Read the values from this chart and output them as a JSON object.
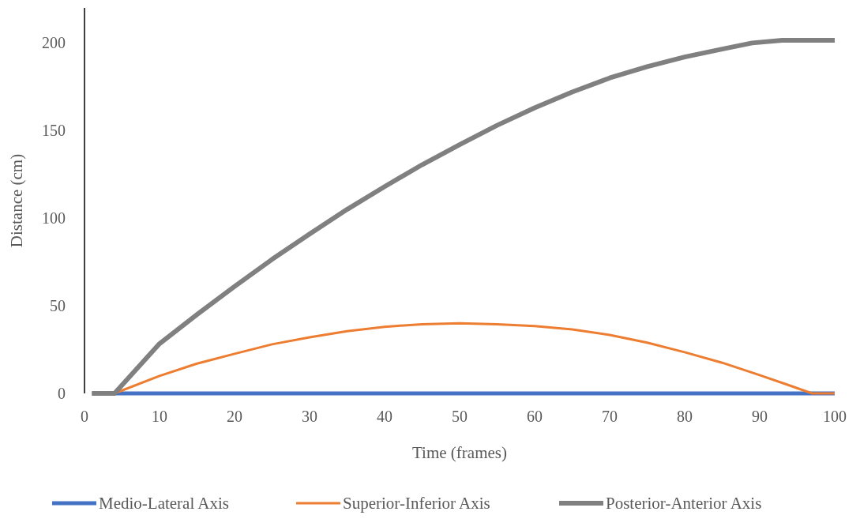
{
  "chart_data": {
    "type": "line",
    "xlabel": "Time (frames)",
    "ylabel": "Distance (cm)",
    "xlim": [
      0,
      100
    ],
    "xticks": [
      0,
      10,
      20,
      30,
      40,
      50,
      60,
      70,
      80,
      90,
      100
    ],
    "ylim": [
      0,
      220
    ],
    "yticks": [
      0,
      50,
      100,
      150,
      200
    ],
    "grid": false,
    "legend": "bottom",
    "marker": "none",
    "line_style": "solid",
    "series": [
      {
        "name": "Medio-Lateral Axis",
        "color": "#4472c4",
        "x": [
          1,
          100
        ],
        "values": [
          0,
          0
        ]
      },
      {
        "name": "Superior-Inferior Axis",
        "color": "#ed7d31",
        "x": [
          1,
          4,
          10,
          15,
          20,
          25,
          30,
          35,
          40,
          45,
          50,
          55,
          60,
          65,
          70,
          75,
          80,
          85,
          90,
          94,
          97,
          100
        ],
        "values": [
          0,
          0,
          10,
          17,
          22.6,
          28,
          32,
          35.5,
          38,
          39.5,
          40,
          39.5,
          38.4,
          36.5,
          33.4,
          29,
          23.5,
          17.5,
          10.4,
          4.5,
          0,
          0
        ]
      },
      {
        "name": "Posterior-Anterior Axis",
        "color": "#808080",
        "x": [
          1,
          4,
          10,
          15,
          20,
          25,
          30,
          35,
          40,
          45,
          50,
          55,
          60,
          65,
          70,
          75,
          80,
          85,
          89,
          93,
          100
        ],
        "values": [
          0,
          0,
          28.4,
          45,
          61,
          76.5,
          91,
          105,
          118,
          130.5,
          142,
          153,
          163,
          172,
          180,
          186.5,
          192,
          196.5,
          200,
          201.5,
          201.5
        ]
      }
    ]
  }
}
